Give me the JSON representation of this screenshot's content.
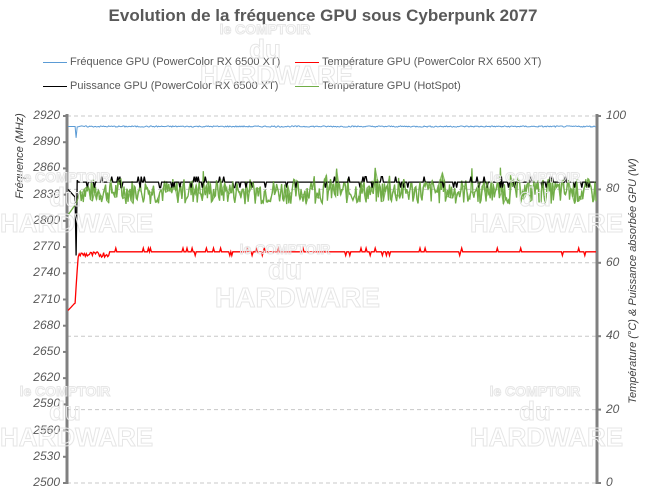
{
  "chart_data": {
    "type": "line",
    "title": "Evolution de la fréquence GPU sous Cyberpunk 2077",
    "xlabel": "",
    "ylabel_left": "Fréquence (MHz)",
    "ylabel_right": "Température (°C) & Puissance absorbée GPU (W)",
    "ylim_left": [
      2500,
      2920
    ],
    "ylim_right": [
      0,
      100
    ],
    "yticks_left": [
      2920,
      2890,
      2860,
      2830,
      2800,
      2770,
      2740,
      2710,
      2680,
      2650,
      2620,
      2590,
      2560,
      2530,
      2500
    ],
    "yticks_right": [
      100,
      80,
      60,
      40,
      20,
      0
    ],
    "grid": "dashed horizontal at right-axis ticks",
    "legend_position": "top",
    "series": [
      {
        "name": "Fréquence GPU (PowerColor RX 6500 XT)",
        "axis": "left",
        "color": "#5b9bd5",
        "start": 2908,
        "dip": 2895,
        "steady": 2908
      },
      {
        "name": "Température GPU (PowerColor RX 6500 XT)",
        "axis": "right",
        "color": "#ff0000",
        "start": 47,
        "steady": 63
      },
      {
        "name": "Puissance GPU (PowerColor RX 6500 XT)",
        "axis": "right",
        "color": "#000000",
        "start": 80,
        "dip": 62,
        "steady": 82
      },
      {
        "name": "Température GPU (HotSpot)",
        "axis": "right",
        "color": "#70ad47",
        "start": 73,
        "steady_min": 76,
        "steady_max": 83
      }
    ]
  },
  "legend": {
    "items": [
      {
        "label": "Fréquence GPU (PowerColor RX 6500 XT)",
        "color": "#5b9bd5"
      },
      {
        "label": "Température GPU (PowerColor RX 6500 XT)",
        "color": "#ff0000"
      },
      {
        "label": "Puissance GPU (PowerColor RX 6500 XT)",
        "color": "#000000"
      },
      {
        "label": "Température GPU (HotSpot)",
        "color": "#70ad47"
      }
    ]
  },
  "watermark": {
    "line1": "le COMPTOIR",
    "line2": "du HARDWARE"
  }
}
